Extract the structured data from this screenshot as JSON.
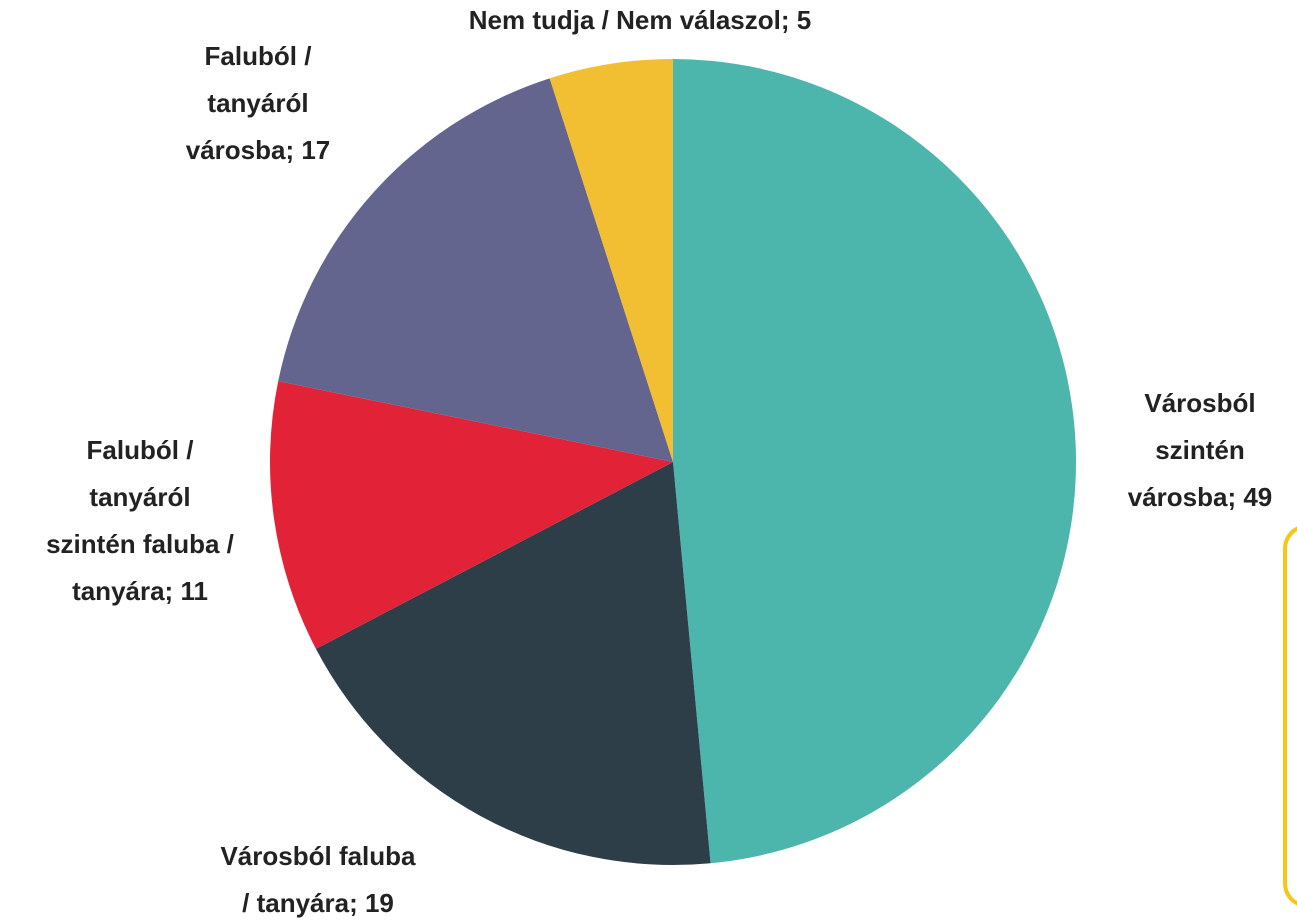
{
  "chart_data": {
    "type": "pie",
    "categories": [
      "Városból szintén városba",
      "Városból faluba / tanyára",
      "Faluból / tanyáról szintén faluba / tanyára",
      "Faluból / tanyáról városba",
      "Nem tudja / Nem válaszol"
    ],
    "values": [
      49,
      19,
      11,
      17,
      5
    ],
    "labels": [
      [
        "Városból",
        "szintén",
        "városba; 49"
      ],
      [
        "Városból faluba",
        "/ tanyára; 19"
      ],
      [
        "Faluból /",
        "tanyáról",
        "szintén faluba /",
        "tanyára; 11"
      ],
      [
        "Faluból /",
        "tanyáról",
        "városba; 17"
      ],
      [
        "Nem tudja / Nem válaszol; 5"
      ]
    ],
    "colors": [
      "#4db6ac",
      "#2d3e48",
      "#e22237",
      "#64658f",
      "#f2be32"
    ]
  }
}
